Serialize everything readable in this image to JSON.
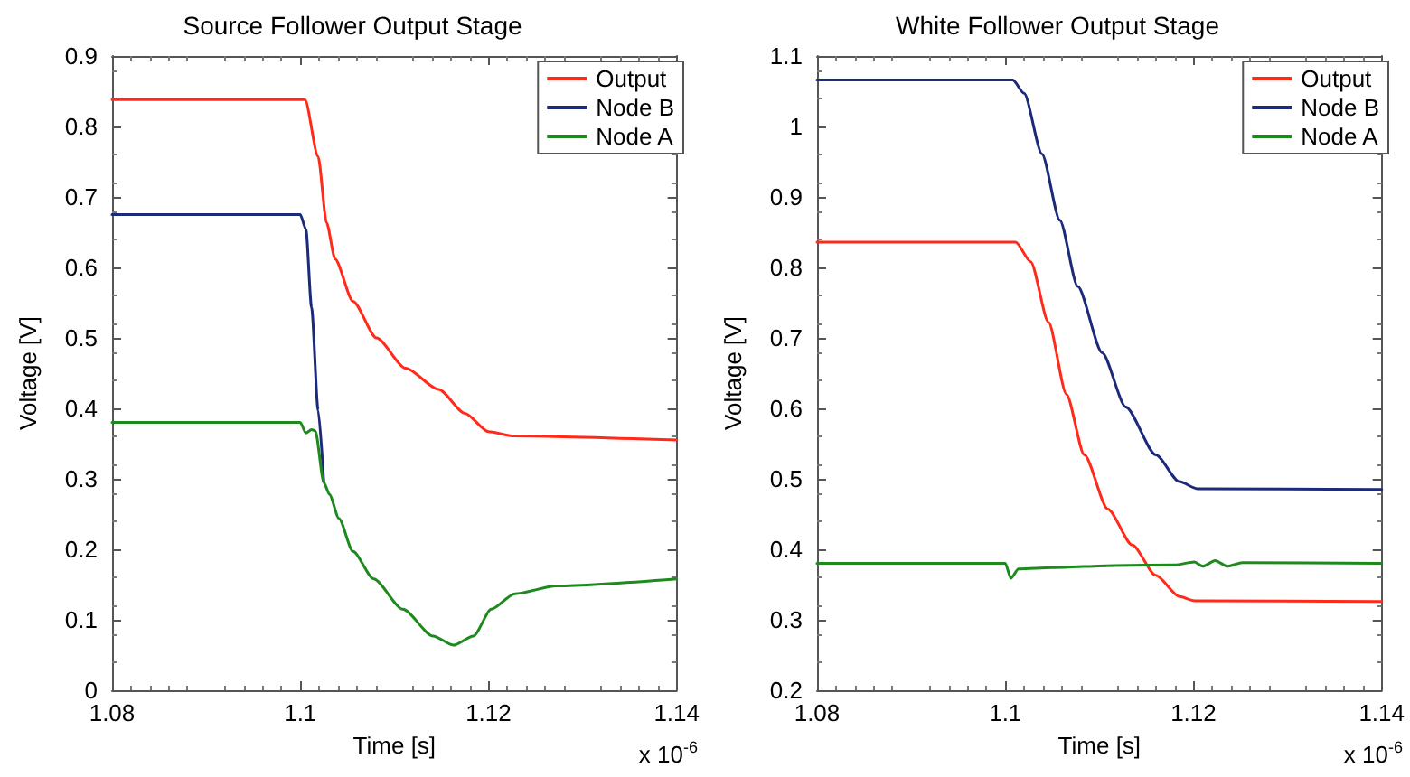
{
  "chart_data": [
    {
      "type": "line",
      "title": "Source Follower Output Stage",
      "xlabel": "Time [s]",
      "ylabel": "Voltage [V]",
      "annotations": [
        "x 10$^{-6}$"
      ],
      "xlim": [
        1.08,
        1.14
      ],
      "xticks": [
        1.08,
        1.1,
        1.12,
        1.14
      ],
      "ylim": [
        0,
        0.9
      ],
      "yticks": [
        0,
        0.1,
        0.2,
        0.3,
        0.4,
        0.5,
        0.6,
        0.7,
        0.8,
        0.9
      ],
      "grid": false,
      "legend": "top right",
      "marker": "none",
      "line_style": "solid",
      "series": [
        {
          "name": "Output",
          "color": "#ff2a1a",
          "x": [
            1.08,
            1.1005,
            1.1019,
            1.1028,
            1.1037,
            1.1056,
            1.1081,
            1.1112,
            1.1147,
            1.1175,
            1.12,
            1.1225,
            1.14
          ],
          "values": [
            0.838,
            0.838,
            0.757,
            0.663,
            0.612,
            0.552,
            0.5,
            0.457,
            0.427,
            0.393,
            0.367,
            0.361,
            0.355
          ]
        },
        {
          "name": "Node B",
          "color": "#1c2a7a",
          "x": [
            1.08,
            1.1,
            1.1006,
            1.1012,
            1.1019,
            1.1025
          ],
          "values": [
            0.675,
            0.675,
            0.654,
            0.543,
            0.397,
            0.295
          ]
        },
        {
          "name": "Node A",
          "color": "#1e8a1e",
          "x": [
            1.08,
            1.1,
            1.1006,
            1.1012,
            1.1016,
            1.1025,
            1.1031,
            1.1041,
            1.1056,
            1.1078,
            1.1109,
            1.1141,
            1.1163,
            1.1184,
            1.1203,
            1.1228,
            1.1272,
            1.14
          ],
          "values": [
            0.38,
            0.38,
            0.365,
            0.37,
            0.368,
            0.295,
            0.278,
            0.244,
            0.197,
            0.158,
            0.115,
            0.077,
            0.064,
            0.077,
            0.115,
            0.137,
            0.148,
            0.158
          ]
        }
      ]
    },
    {
      "type": "line",
      "title": "White Follower Output Stage",
      "xlabel": "Time [s]",
      "ylabel": "Voltage [V]",
      "annotations": [
        "x 10$^{-6}$"
      ],
      "xlim": [
        1.08,
        1.14
      ],
      "xticks": [
        1.08,
        1.1,
        1.12,
        1.14
      ],
      "ylim": [
        0.2,
        1.1
      ],
      "yticks": [
        0.2,
        0.3,
        0.4,
        0.5,
        0.6,
        0.7,
        0.8,
        0.9,
        1,
        1.1
      ],
      "grid": false,
      "legend": "top right",
      "marker": "none",
      "line_style": "solid",
      "series": [
        {
          "name": "Output",
          "color": "#ff2a1a",
          "x": [
            1.08,
            1.1011,
            1.1027,
            1.1046,
            1.1065,
            1.1084,
            1.1109,
            1.1135,
            1.116,
            1.1185,
            1.1201,
            1.14
          ],
          "values": [
            0.836,
            0.836,
            0.808,
            0.722,
            0.62,
            0.534,
            0.457,
            0.406,
            0.363,
            0.333,
            0.327,
            0.326
          ]
        },
        {
          "name": "Node B",
          "color": "#1c2a7a",
          "x": [
            1.08,
            1.1008,
            1.102,
            1.1039,
            1.1058,
            1.1077,
            1.1103,
            1.1128,
            1.116,
            1.1185,
            1.1204,
            1.14
          ],
          "values": [
            1.066,
            1.066,
            1.047,
            0.961,
            0.867,
            0.773,
            0.679,
            0.602,
            0.534,
            0.496,
            0.486,
            0.485
          ]
        },
        {
          "name": "Node A",
          "color": "#1e8a1e",
          "x": [
            1.08,
            1.1,
            1.1006,
            1.1014,
            1.105,
            1.1116,
            1.118,
            1.1201,
            1.121,
            1.1223,
            1.1236,
            1.1252,
            1.14
          ],
          "values": [
            0.38,
            0.38,
            0.359,
            0.372,
            0.374,
            0.377,
            0.378,
            0.382,
            0.376,
            0.384,
            0.376,
            0.381,
            0.38
          ]
        }
      ]
    }
  ]
}
